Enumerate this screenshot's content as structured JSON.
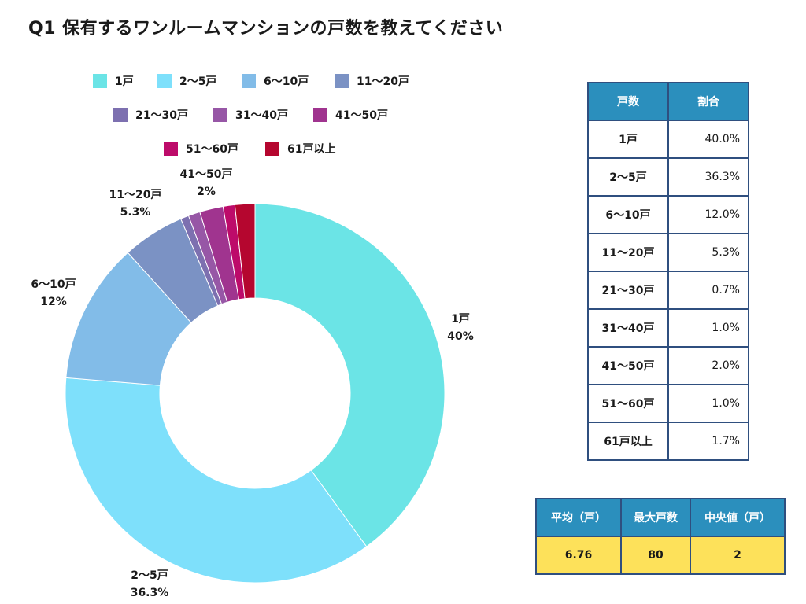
{
  "title": "Q1 保有するワンルームマンションの戸数を教えてください",
  "chart_data": {
    "type": "pie",
    "variant": "donut",
    "title": "Q1 保有するワンルームマンションの戸数を教えてください",
    "legend_position": "top",
    "categories": [
      "1戸",
      "2〜5戸",
      "6〜10戸",
      "11〜20戸",
      "21〜30戸",
      "31〜40戸",
      "41〜50戸",
      "51〜60戸",
      "61戸以上"
    ],
    "values": [
      40.0,
      36.3,
      12.0,
      5.3,
      0.7,
      1.0,
      2.0,
      1.0,
      1.7
    ],
    "colors": [
      "#6be4e6",
      "#7ee0fb",
      "#82bce8",
      "#7b92c4",
      "#7d70b0",
      "#9757a6",
      "#a0348f",
      "#bd0b6a",
      "#b5062f"
    ],
    "data_labels": [
      {
        "category": "1戸",
        "pct": "40%"
      },
      {
        "category": "2〜5戸",
        "pct": "36.3%"
      },
      {
        "category": "6〜10戸",
        "pct": "12%"
      },
      {
        "category": "11〜20戸",
        "pct": "5.3%"
      },
      {
        "category": "41〜50戸",
        "pct": "2%"
      }
    ]
  },
  "ratio_table": {
    "headers": [
      "戸数",
      "割合"
    ],
    "rows": [
      [
        "1戸",
        "40.0%"
      ],
      [
        "2〜5戸",
        "36.3%"
      ],
      [
        "6〜10戸",
        "12.0%"
      ],
      [
        "11〜20戸",
        "5.3%"
      ],
      [
        "21〜30戸",
        "0.7%"
      ],
      [
        "31〜40戸",
        "1.0%"
      ],
      [
        "41〜50戸",
        "2.0%"
      ],
      [
        "51〜60戸",
        "1.0%"
      ],
      [
        "61戸以上",
        "1.7%"
      ]
    ]
  },
  "stats_table": {
    "headers": [
      "平均（戸）",
      "最大戸数",
      "中央値（戸）"
    ],
    "values": [
      "6.76",
      "80",
      "2"
    ]
  }
}
